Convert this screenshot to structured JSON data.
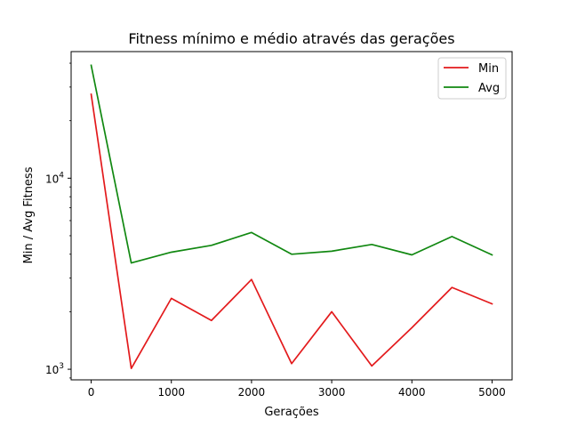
{
  "chart_data": {
    "type": "line",
    "title": "Fitness mínimo e médio através das gerações",
    "xlabel": "Gerações",
    "ylabel": "Min / Avg Fitness",
    "xlim": [
      -250,
      5250
    ],
    "ylim": [
      880,
      46000
    ],
    "yscale": "log",
    "grid": false,
    "legend_position": "top-right",
    "x": [
      0,
      500,
      1000,
      1500,
      2000,
      2500,
      3000,
      3500,
      4000,
      4500,
      5000
    ],
    "x_ticks": [
      0,
      1000,
      2000,
      3000,
      4000,
      5000
    ],
    "x_tick_labels": [
      "0",
      "1000",
      "2000",
      "3000",
      "4000",
      "5000"
    ],
    "y_major_ticks": [
      1000,
      10000
    ],
    "y_tick_labels": [
      {
        "base": "10",
        "exp": "3"
      },
      {
        "base": "10",
        "exp": "4"
      }
    ],
    "series": [
      {
        "name": "Min",
        "color": "#e31a1c",
        "values": [
          27500,
          1010,
          2350,
          1800,
          2950,
          1070,
          2000,
          1040,
          1650,
          2680,
          2200
        ]
      },
      {
        "name": "Avg",
        "color": "#118811",
        "values": [
          39000,
          3600,
          4100,
          4450,
          5200,
          4000,
          4150,
          4500,
          3970,
          4950,
          3970
        ]
      }
    ]
  }
}
